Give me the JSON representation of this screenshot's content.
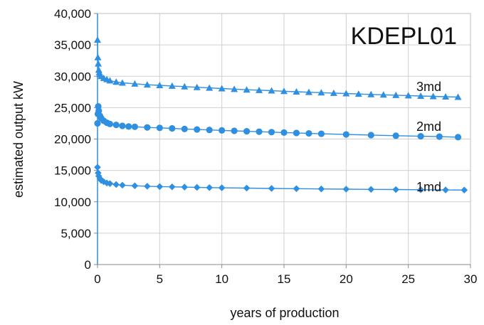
{
  "chart_data": {
    "type": "scatter",
    "title": "KDEPL01",
    "xlabel": "years of production",
    "ylabel": "estimated output kW",
    "xlim": [
      0,
      30
    ],
    "ylim": [
      0,
      40000
    ],
    "xticks": [
      0,
      5,
      10,
      15,
      20,
      25,
      30
    ],
    "yticks": [
      0,
      5000,
      10000,
      15000,
      20000,
      25000,
      30000,
      35000,
      40000
    ],
    "xtick_labels": [
      "0",
      "5",
      "10",
      "15",
      "20",
      "25",
      "30"
    ],
    "ytick_labels": [
      "0",
      "5,000",
      "10,000",
      "15,000",
      "20,000",
      "25,000",
      "30,000",
      "35,000",
      "40,000"
    ],
    "grid": true,
    "color": "#2f8fe0",
    "series": [
      {
        "name": "1md",
        "marker": "diamond",
        "x": [
          0,
          0.05,
          0.1,
          0.2,
          0.3,
          0.5,
          0.75,
          1,
          1.5,
          2,
          3,
          4,
          5,
          6,
          7,
          8,
          9,
          10,
          12,
          14,
          16,
          18,
          20,
          22,
          24,
          26,
          28,
          29.5
        ],
        "y": [
          15500,
          14600,
          14100,
          13700,
          13400,
          13200,
          13000,
          12900,
          12750,
          12650,
          12550,
          12480,
          12420,
          12380,
          12340,
          12300,
          12260,
          12230,
          12180,
          12130,
          12090,
          12050,
          12010,
          11980,
          11950,
          11920,
          11890,
          11870
        ]
      },
      {
        "name": "2md",
        "marker": "circle",
        "x": [
          0,
          0.03,
          0.06,
          0.1,
          0.2,
          0.3,
          0.5,
          0.75,
          1,
          1.5,
          2,
          2.5,
          3,
          4,
          5,
          6,
          7,
          8,
          9,
          10,
          11,
          12,
          13,
          14,
          15,
          16,
          17,
          18,
          20,
          22,
          24,
          26,
          27.5,
          29
        ],
        "y": [
          22500,
          24000,
          25200,
          24500,
          23700,
          23300,
          22900,
          22600,
          22400,
          22250,
          22100,
          22000,
          21950,
          21850,
          21780,
          21700,
          21600,
          21520,
          21450,
          21370,
          21300,
          21230,
          21170,
          21100,
          21030,
          20970,
          20900,
          20840,
          20730,
          20630,
          20530,
          20440,
          20380,
          20300
        ]
      },
      {
        "name": "3md",
        "marker": "triangle",
        "x": [
          0,
          0.03,
          0.06,
          0.1,
          0.15,
          0.2,
          0.3,
          0.5,
          0.75,
          1,
          1.5,
          2,
          3,
          4,
          5,
          6,
          7,
          8,
          9,
          10,
          11,
          12,
          13,
          14,
          15,
          16,
          17,
          18,
          19,
          20,
          21,
          22,
          23,
          24,
          25,
          26,
          27,
          28,
          29
        ],
        "y": [
          35800,
          33000,
          32000,
          31000,
          30600,
          30300,
          30000,
          29700,
          29500,
          29300,
          29100,
          28950,
          28800,
          28650,
          28550,
          28450,
          28350,
          28250,
          28150,
          28050,
          27950,
          27850,
          27780,
          27700,
          27620,
          27540,
          27460,
          27390,
          27320,
          27250,
          27180,
          27110,
          27050,
          26980,
          26920,
          26860,
          26800,
          26740,
          26680
        ]
      }
    ]
  }
}
